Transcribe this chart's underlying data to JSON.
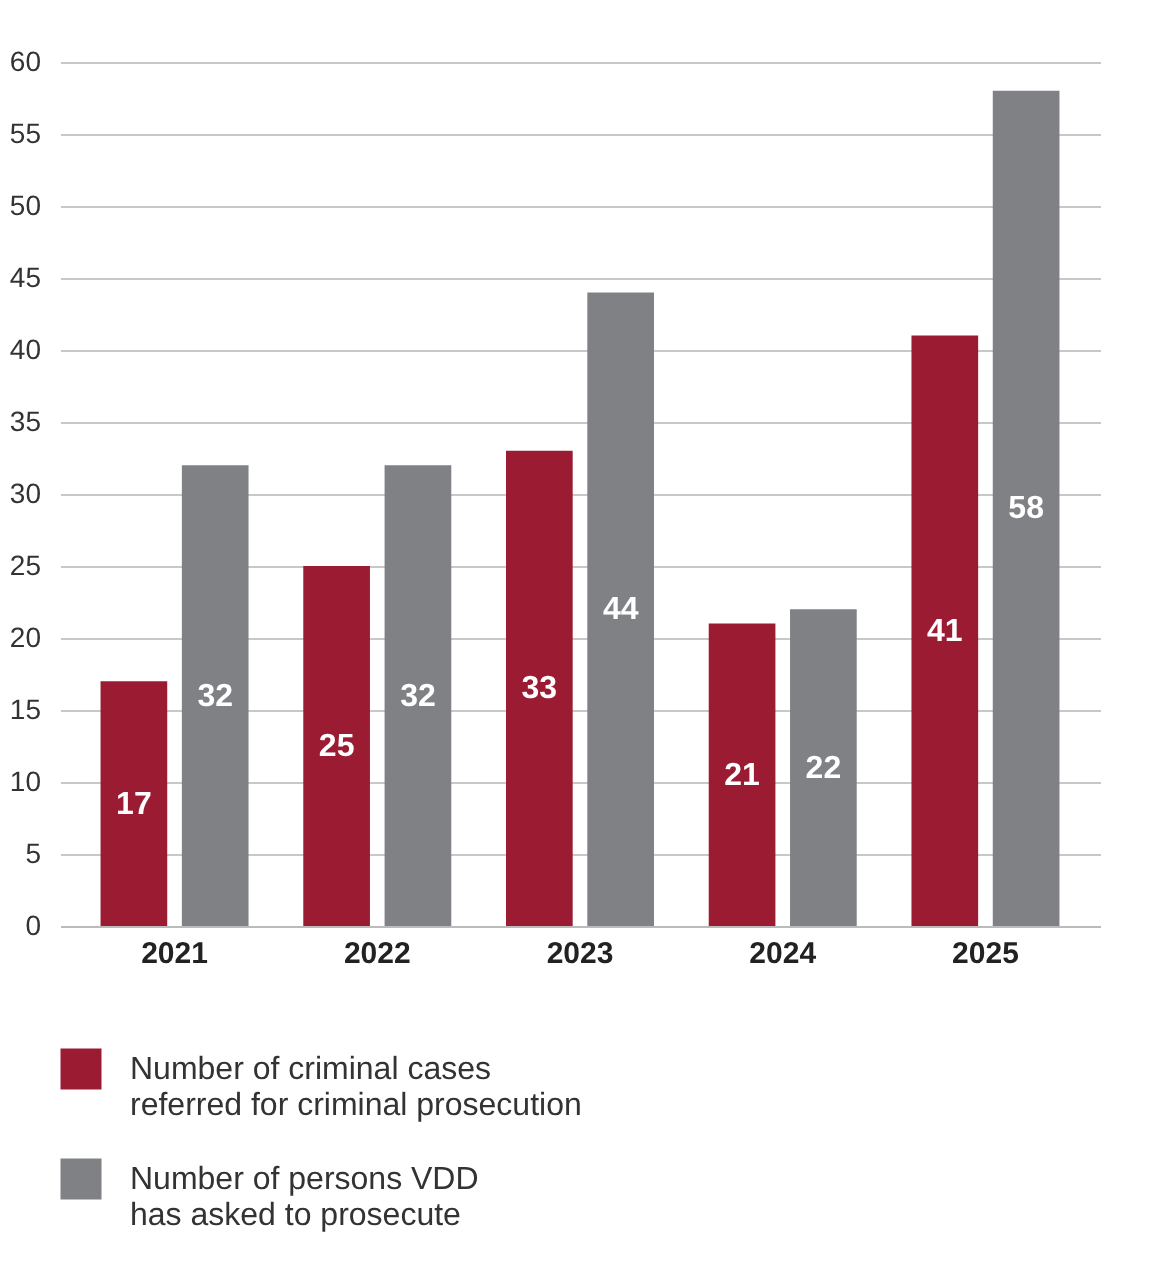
{
  "chart_data": {
    "type": "bar",
    "categories": [
      "2021",
      "2022",
      "2023",
      "2024",
      "2025"
    ],
    "series": [
      {
        "name": "Number of criminal cases referred for criminal prosecution",
        "color": "#9b1b33",
        "values": [
          17,
          25,
          33,
          21,
          41
        ]
      },
      {
        "name": "Number of persons VDD has asked to prosecute",
        "color": "#808184",
        "values": [
          32,
          32,
          44,
          22,
          58
        ]
      }
    ],
    "ylim": [
      0,
      60
    ],
    "yticks": [
      0,
      5,
      10,
      15,
      20,
      25,
      30,
      35,
      40,
      45,
      50,
      55,
      60
    ],
    "grid": "y",
    "legend": "bottom left",
    "data_labels": true
  }
}
